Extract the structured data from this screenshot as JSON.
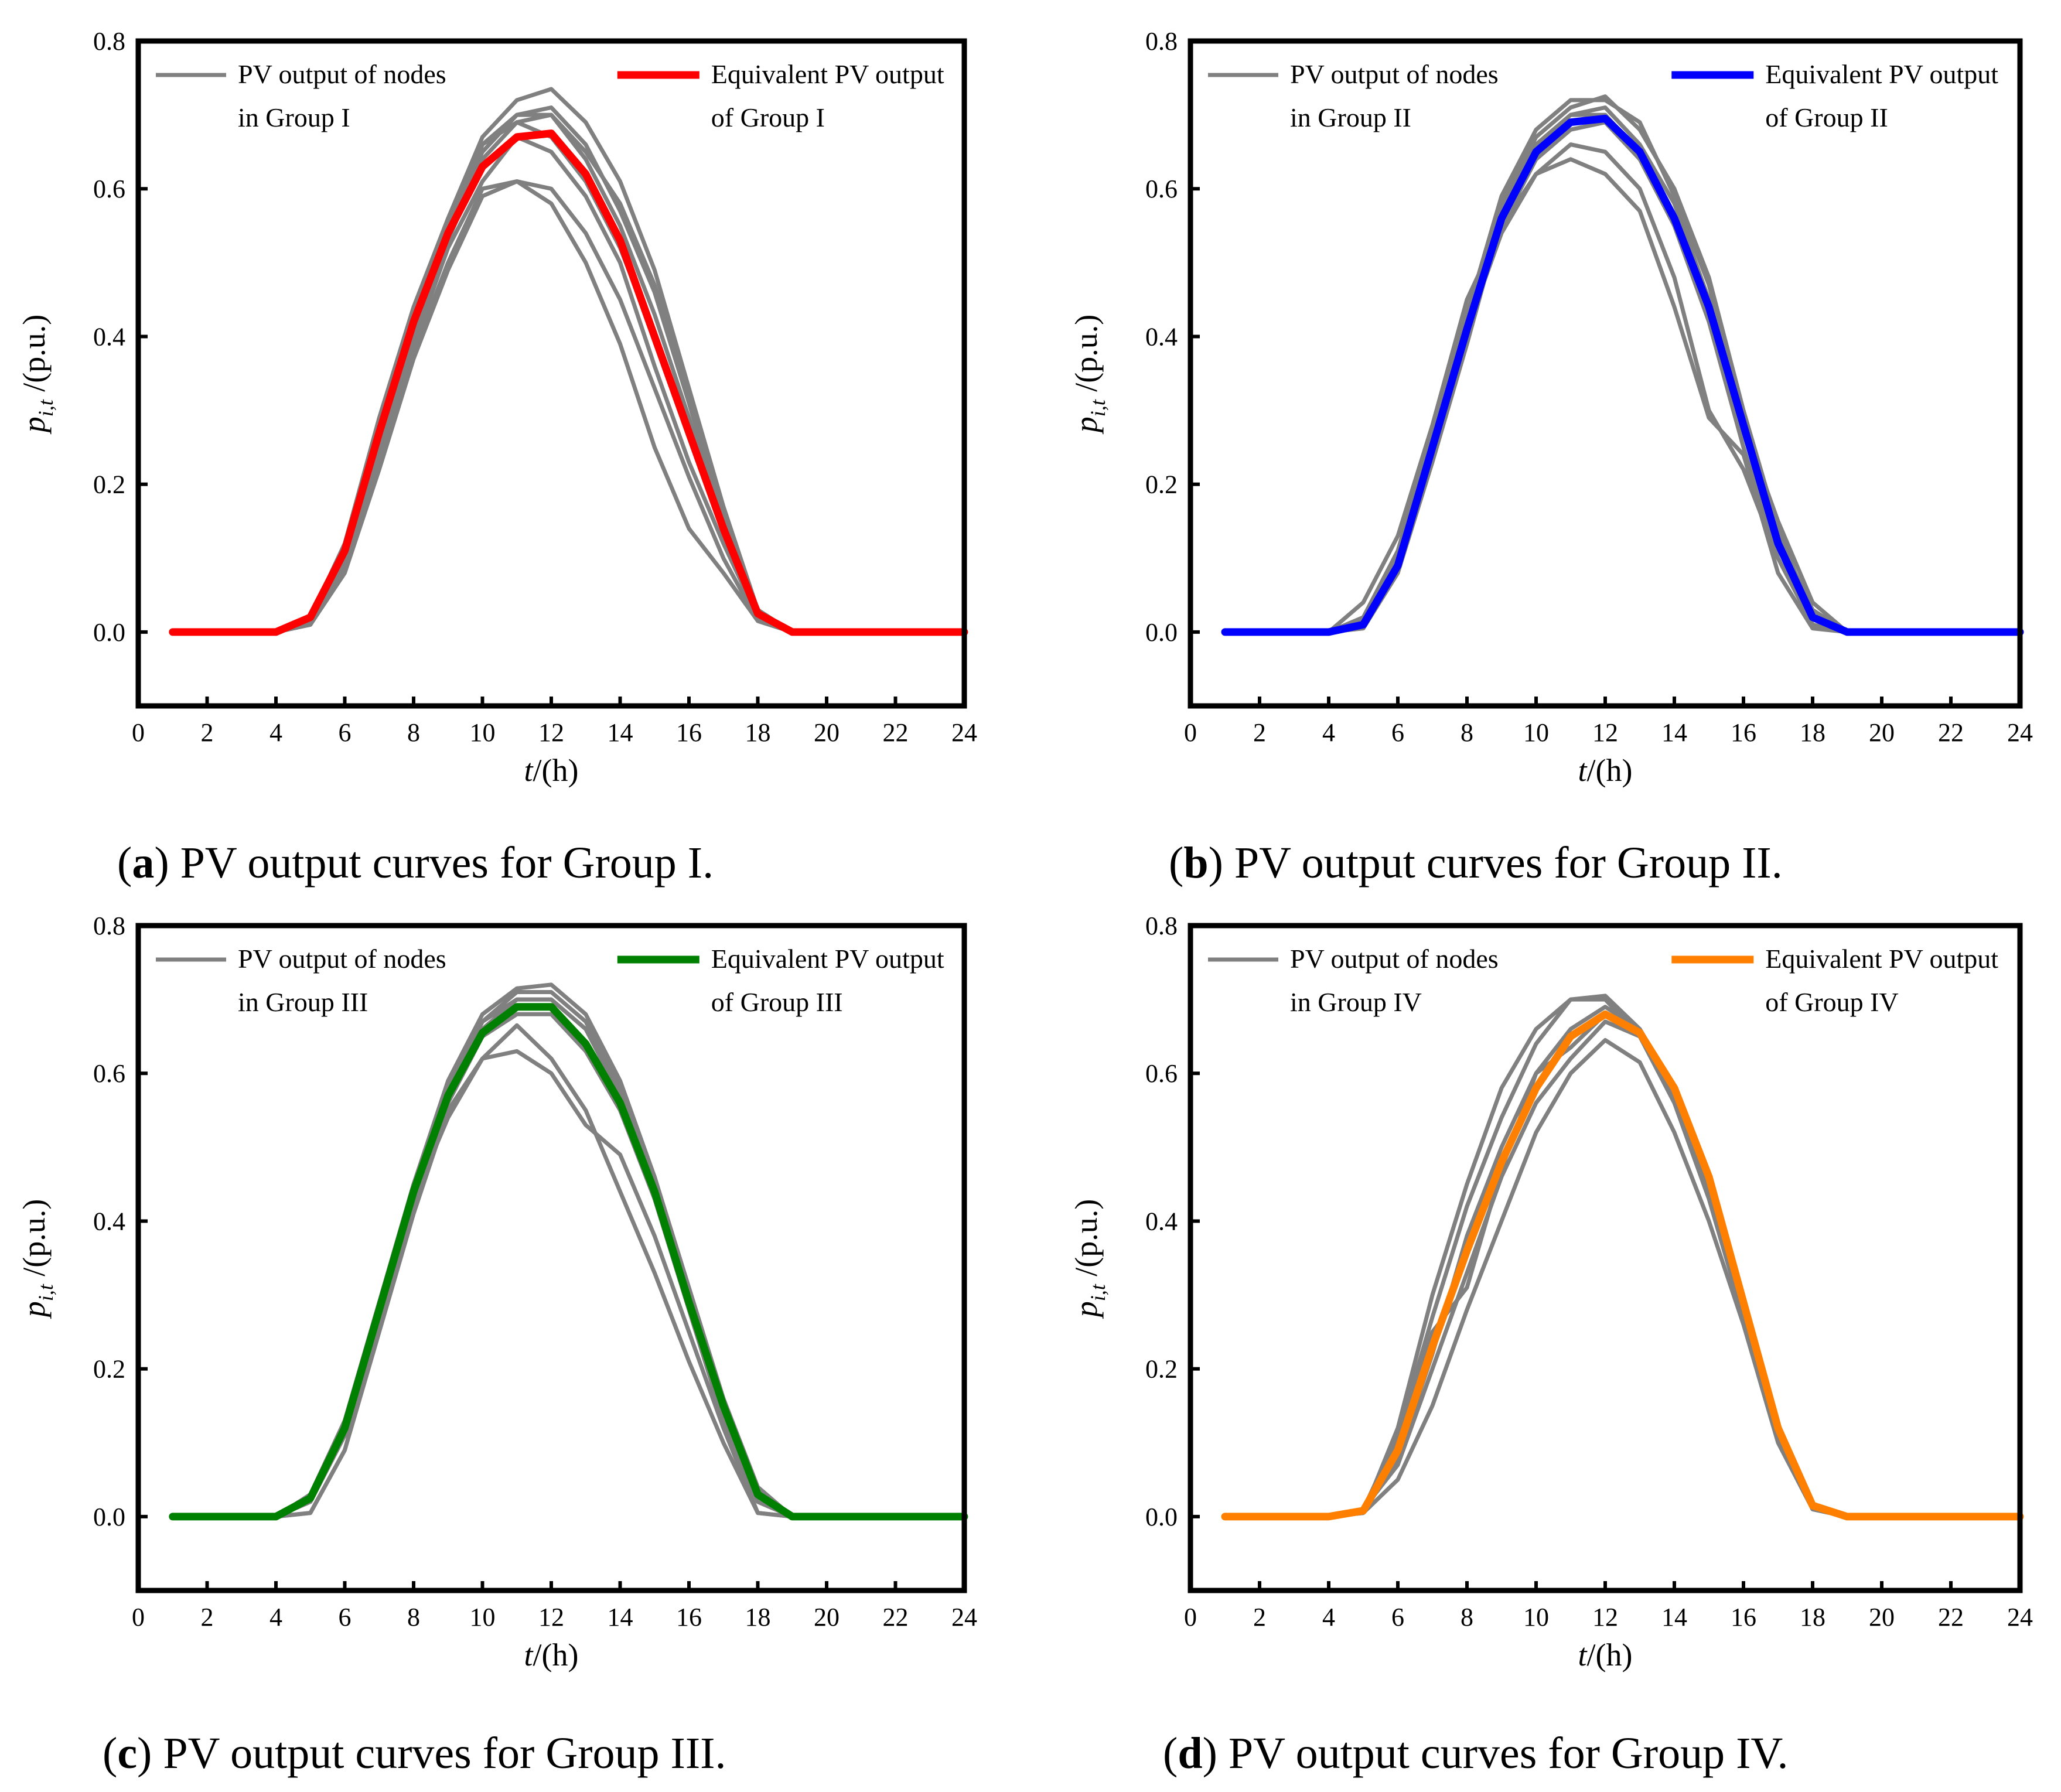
{
  "chart_data": [
    {
      "id": "a",
      "type": "line",
      "caption_letter": "a",
      "caption": "PV output curves for Group I.",
      "xlabel": "t/(h)",
      "ylabel": "p_{i,t} /(p.u.)",
      "xlabel_var": "t",
      "xlabel_unit": "/(h)",
      "ylabel_var": "p",
      "ylabel_sub": "i,t",
      "ylabel_unit": " /(p.u.)",
      "xlim": [
        0,
        24
      ],
      "ylim": [
        -0.1,
        0.8
      ],
      "xticks": [
        "0",
        "2",
        "4",
        "6",
        "8",
        "10",
        "12",
        "14",
        "16",
        "18",
        "20",
        "22",
        "24"
      ],
      "yticks": [
        "0.0",
        "0.2",
        "0.4",
        "0.6",
        "0.8"
      ],
      "legend": {
        "nodes_label_line1": "PV output of nodes",
        "nodes_label_line2": "in Group I",
        "equiv_label_line1": "Equivalent PV output",
        "equiv_label_line2": "of Group I"
      },
      "node_color": "#808080",
      "equiv_color": "#ff0000",
      "x": [
        1,
        2,
        3,
        4,
        5,
        6,
        7,
        8,
        9,
        10,
        11,
        12,
        13,
        14,
        15,
        16,
        17,
        18,
        19,
        20,
        21,
        22,
        23,
        24
      ],
      "equivalent": [
        0,
        0,
        0,
        0,
        0.02,
        0.11,
        0.27,
        0.42,
        0.54,
        0.63,
        0.67,
        0.675,
        0.62,
        0.53,
        0.4,
        0.27,
        0.14,
        0.025,
        0,
        0,
        0,
        0,
        0,
        0
      ],
      "nodes": [
        [
          0,
          0,
          0,
          0,
          0.02,
          0.12,
          0.29,
          0.44,
          0.56,
          0.67,
          0.72,
          0.735,
          0.69,
          0.61,
          0.49,
          0.33,
          0.17,
          0.03,
          0,
          0,
          0,
          0,
          0,
          0
        ],
        [
          0,
          0,
          0,
          0,
          0.02,
          0.11,
          0.28,
          0.43,
          0.55,
          0.65,
          0.7,
          0.71,
          0.66,
          0.57,
          0.46,
          0.31,
          0.15,
          0.025,
          0,
          0,
          0,
          0,
          0,
          0
        ],
        [
          0,
          0,
          0,
          0,
          0.015,
          0.1,
          0.26,
          0.41,
          0.53,
          0.64,
          0.69,
          0.7,
          0.64,
          0.55,
          0.43,
          0.29,
          0.14,
          0.02,
          0,
          0,
          0,
          0,
          0,
          0
        ],
        [
          0,
          0,
          0,
          0,
          0.01,
          0.09,
          0.24,
          0.39,
          0.52,
          0.61,
          0.67,
          0.65,
          0.59,
          0.5,
          0.36,
          0.23,
          0.12,
          0.02,
          0,
          0,
          0,
          0,
          0,
          0
        ],
        [
          0,
          0,
          0,
          0,
          0.01,
          0.08,
          0.22,
          0.37,
          0.49,
          0.59,
          0.61,
          0.6,
          0.54,
          0.45,
          0.33,
          0.21,
          0.1,
          0.015,
          0,
          0,
          0,
          0,
          0,
          0
        ],
        [
          0,
          0,
          0,
          0,
          0.01,
          0.09,
          0.23,
          0.38,
          0.5,
          0.6,
          0.61,
          0.58,
          0.5,
          0.39,
          0.25,
          0.14,
          0.08,
          0.015,
          0,
          0,
          0,
          0,
          0,
          0
        ],
        [
          0,
          0,
          0,
          0,
          0.015,
          0.1,
          0.25,
          0.4,
          0.54,
          0.66,
          0.7,
          0.7,
          0.65,
          0.58,
          0.47,
          0.32,
          0.16,
          0.03,
          0,
          0,
          0,
          0,
          0,
          0
        ],
        [
          0,
          0,
          0,
          0,
          0.02,
          0.11,
          0.27,
          0.42,
          0.55,
          0.66,
          0.69,
          0.67,
          0.61,
          0.52,
          0.4,
          0.27,
          0.14,
          0.025,
          0,
          0,
          0,
          0,
          0,
          0
        ]
      ]
    },
    {
      "id": "b",
      "type": "line",
      "caption_letter": "b",
      "caption": "PV output curves for Group II.",
      "xlabel": "t/(h)",
      "ylabel": "p_{i,t} /(p.u.)",
      "xlabel_var": "t",
      "xlabel_unit": "/(h)",
      "ylabel_var": "p",
      "ylabel_sub": "i,t",
      "ylabel_unit": " /(p.u.)",
      "xlim": [
        0,
        24
      ],
      "ylim": [
        -0.1,
        0.8
      ],
      "xticks": [
        "0",
        "2",
        "4",
        "6",
        "8",
        "10",
        "12",
        "14",
        "16",
        "18",
        "20",
        "22",
        "24"
      ],
      "yticks": [
        "0.0",
        "0.2",
        "0.4",
        "0.6",
        "0.8"
      ],
      "legend": {
        "nodes_label_line1": "PV output of nodes",
        "nodes_label_line2": "in Group II",
        "equiv_label_line1": "Equivalent PV output",
        "equiv_label_line2": "of Group II"
      },
      "node_color": "#808080",
      "equiv_color": "#0000ff",
      "x": [
        1,
        2,
        3,
        4,
        5,
        6,
        7,
        8,
        9,
        10,
        11,
        12,
        13,
        14,
        15,
        16,
        17,
        18,
        19,
        20,
        21,
        22,
        23,
        24
      ],
      "equivalent": [
        0,
        0,
        0,
        0,
        0.01,
        0.09,
        0.25,
        0.41,
        0.56,
        0.65,
        0.69,
        0.695,
        0.65,
        0.56,
        0.44,
        0.28,
        0.12,
        0.02,
        0,
        0,
        0,
        0,
        0,
        0
      ],
      "nodes": [
        [
          0,
          0,
          0,
          0,
          0.01,
          0.1,
          0.26,
          0.42,
          0.58,
          0.67,
          0.71,
          0.725,
          0.68,
          0.6,
          0.48,
          0.3,
          0.14,
          0.02,
          0,
          0,
          0,
          0,
          0,
          0
        ],
        [
          0,
          0,
          0,
          0,
          0.015,
          0.11,
          0.27,
          0.43,
          0.59,
          0.68,
          0.72,
          0.72,
          0.69,
          0.59,
          0.47,
          0.29,
          0.13,
          0.03,
          0,
          0,
          0,
          0,
          0,
          0
        ],
        [
          0,
          0,
          0,
          0,
          0.01,
          0.09,
          0.25,
          0.41,
          0.57,
          0.66,
          0.7,
          0.71,
          0.66,
          0.58,
          0.45,
          0.27,
          0.12,
          0.02,
          0,
          0,
          0,
          0,
          0,
          0
        ],
        [
          0,
          0,
          0,
          0,
          0.005,
          0.08,
          0.24,
          0.4,
          0.55,
          0.64,
          0.68,
          0.69,
          0.64,
          0.55,
          0.42,
          0.25,
          0.1,
          0.01,
          0,
          0,
          0,
          0,
          0,
          0
        ],
        [
          0,
          0,
          0,
          0,
          0.04,
          0.13,
          0.28,
          0.45,
          0.55,
          0.62,
          0.66,
          0.65,
          0.6,
          0.48,
          0.3,
          0.22,
          0.1,
          0.01,
          0,
          0,
          0,
          0,
          0,
          0
        ],
        [
          0,
          0,
          0,
          0,
          0.02,
          0.11,
          0.26,
          0.41,
          0.54,
          0.62,
          0.64,
          0.62,
          0.57,
          0.44,
          0.29,
          0.24,
          0.08,
          0.005,
          0,
          0,
          0,
          0,
          0,
          0
        ],
        [
          0,
          0,
          0,
          0,
          0.005,
          0.08,
          0.23,
          0.39,
          0.56,
          0.66,
          0.7,
          0.7,
          0.65,
          0.55,
          0.43,
          0.28,
          0.15,
          0.04,
          0,
          0,
          0,
          0,
          0,
          0
        ]
      ]
    },
    {
      "id": "c",
      "type": "line",
      "caption_letter": "c",
      "caption": "PV output curves for Group III.",
      "xlabel": "t/(h)",
      "ylabel": "p_{i,t} /(p.u.)",
      "xlabel_var": "t",
      "xlabel_unit": "/(h)",
      "ylabel_var": "p",
      "ylabel_sub": "i,t",
      "ylabel_unit": " /(p.u.)",
      "xlim": [
        0,
        24
      ],
      "ylim": [
        -0.1,
        0.8
      ],
      "xticks": [
        "0",
        "2",
        "4",
        "6",
        "8",
        "10",
        "12",
        "14",
        "16",
        "18",
        "20",
        "22",
        "24"
      ],
      "yticks": [
        "0.0",
        "0.2",
        "0.4",
        "0.6",
        "0.8"
      ],
      "legend": {
        "nodes_label_line1": "PV output of nodes",
        "nodes_label_line2": "in Group III",
        "equiv_label_line1": "Equivalent PV output",
        "equiv_label_line2": "of Group III"
      },
      "node_color": "#808080",
      "equiv_color": "#008000",
      "x": [
        1,
        2,
        3,
        4,
        5,
        6,
        7,
        8,
        9,
        10,
        11,
        12,
        13,
        14,
        15,
        16,
        17,
        18,
        19,
        20,
        21,
        22,
        23,
        24
      ],
      "equivalent": [
        0,
        0,
        0,
        0,
        0.025,
        0.12,
        0.28,
        0.44,
        0.57,
        0.655,
        0.69,
        0.69,
        0.64,
        0.56,
        0.44,
        0.29,
        0.15,
        0.03,
        0,
        0,
        0,
        0,
        0,
        0
      ],
      "nodes": [
        [
          0,
          0,
          0,
          0,
          0.03,
          0.13,
          0.29,
          0.45,
          0.59,
          0.68,
          0.715,
          0.72,
          0.68,
          0.59,
          0.46,
          0.31,
          0.16,
          0.04,
          0,
          0,
          0,
          0,
          0,
          0
        ],
        [
          0,
          0,
          0,
          0,
          0.025,
          0.12,
          0.28,
          0.44,
          0.58,
          0.67,
          0.71,
          0.71,
          0.67,
          0.58,
          0.45,
          0.3,
          0.15,
          0.03,
          0,
          0,
          0,
          0,
          0,
          0
        ],
        [
          0,
          0,
          0,
          0,
          0.02,
          0.11,
          0.27,
          0.43,
          0.57,
          0.66,
          0.7,
          0.7,
          0.66,
          0.57,
          0.44,
          0.29,
          0.14,
          0.02,
          0,
          0,
          0,
          0,
          0,
          0
        ],
        [
          0,
          0,
          0,
          0,
          0.005,
          0.09,
          0.26,
          0.42,
          0.56,
          0.65,
          0.68,
          0.68,
          0.63,
          0.55,
          0.43,
          0.28,
          0.13,
          0.02,
          0,
          0,
          0,
          0,
          0,
          0
        ],
        [
          0,
          0,
          0,
          0,
          0.005,
          0.09,
          0.25,
          0.41,
          0.55,
          0.62,
          0.665,
          0.62,
          0.55,
          0.44,
          0.33,
          0.21,
          0.1,
          0.005,
          0,
          0,
          0,
          0,
          0,
          0
        ],
        [
          0,
          0,
          0,
          0,
          0.02,
          0.11,
          0.27,
          0.43,
          0.54,
          0.62,
          0.63,
          0.6,
          0.53,
          0.49,
          0.38,
          0.25,
          0.12,
          0.005,
          0,
          0,
          0,
          0,
          0,
          0
        ],
        [
          0,
          0,
          0,
          0,
          0.03,
          0.13,
          0.29,
          0.45,
          0.58,
          0.67,
          0.7,
          0.7,
          0.66,
          0.58,
          0.46,
          0.3,
          0.15,
          0.03,
          0,
          0,
          0,
          0,
          0,
          0
        ]
      ]
    },
    {
      "id": "d",
      "type": "line",
      "caption_letter": "d",
      "caption": "PV output curves for Group IV.",
      "xlabel": "t/(h)",
      "ylabel": "p_{i,t} /(p.u.)",
      "xlabel_var": "t",
      "xlabel_unit": "/(h)",
      "ylabel_var": "p",
      "ylabel_sub": "i,t",
      "ylabel_unit": " /(p.u.)",
      "xlim": [
        0,
        24
      ],
      "ylim": [
        -0.1,
        0.8
      ],
      "xticks": [
        "0",
        "2",
        "4",
        "6",
        "8",
        "10",
        "12",
        "14",
        "16",
        "18",
        "20",
        "22",
        "24"
      ],
      "yticks": [
        "0.0",
        "0.2",
        "0.4",
        "0.6",
        "0.8"
      ],
      "legend": {
        "nodes_label_line1": "PV output of nodes",
        "nodes_label_line2": "in Group IV",
        "equiv_label_line1": "Equivalent PV output",
        "equiv_label_line2": "of Group IV"
      },
      "node_color": "#808080",
      "equiv_color": "#ff8000",
      "x": [
        1,
        2,
        3,
        4,
        5,
        6,
        7,
        8,
        9,
        10,
        11,
        12,
        13,
        14,
        15,
        16,
        17,
        18,
        19,
        20,
        21,
        22,
        23,
        24
      ],
      "equivalent": [
        0,
        0,
        0,
        0,
        0.008,
        0.09,
        0.23,
        0.36,
        0.48,
        0.58,
        0.65,
        0.68,
        0.655,
        0.58,
        0.46,
        0.29,
        0.12,
        0.015,
        0,
        0,
        0,
        0,
        0,
        0
      ],
      "nodes": [
        [
          0,
          0,
          0,
          0,
          0.005,
          0.12,
          0.3,
          0.45,
          0.58,
          0.66,
          0.7,
          0.705,
          0.66,
          0.57,
          0.44,
          0.27,
          0.11,
          0.01,
          0,
          0,
          0,
          0,
          0,
          0
        ],
        [
          0,
          0,
          0,
          0,
          0.01,
          0.11,
          0.27,
          0.42,
          0.54,
          0.64,
          0.7,
          0.7,
          0.65,
          0.56,
          0.43,
          0.27,
          0.11,
          0.01,
          0,
          0,
          0,
          0,
          0,
          0
        ],
        [
          0,
          0,
          0,
          0,
          0.01,
          0.07,
          0.2,
          0.33,
          0.46,
          0.56,
          0.62,
          0.67,
          0.65,
          0.57,
          0.44,
          0.27,
          0.11,
          0.01,
          0,
          0,
          0,
          0,
          0,
          0
        ],
        [
          0,
          0,
          0,
          0,
          0.005,
          0.05,
          0.15,
          0.28,
          0.4,
          0.52,
          0.6,
          0.645,
          0.615,
          0.52,
          0.4,
          0.26,
          0.1,
          0.01,
          0,
          0,
          0,
          0,
          0,
          0
        ],
        [
          0,
          0,
          0,
          0,
          0.008,
          0.1,
          0.25,
          0.31,
          0.47,
          0.6,
          0.635,
          0.68,
          0.66,
          0.58,
          0.45,
          0.28,
          0.12,
          0.015,
          0,
          0,
          0,
          0,
          0,
          0
        ],
        [
          0,
          0,
          0,
          0,
          0.005,
          0.08,
          0.22,
          0.38,
          0.5,
          0.6,
          0.66,
          0.69,
          0.66,
          0.58,
          0.46,
          0.29,
          0.12,
          0.015,
          0,
          0,
          0,
          0,
          0,
          0
        ]
      ]
    }
  ]
}
